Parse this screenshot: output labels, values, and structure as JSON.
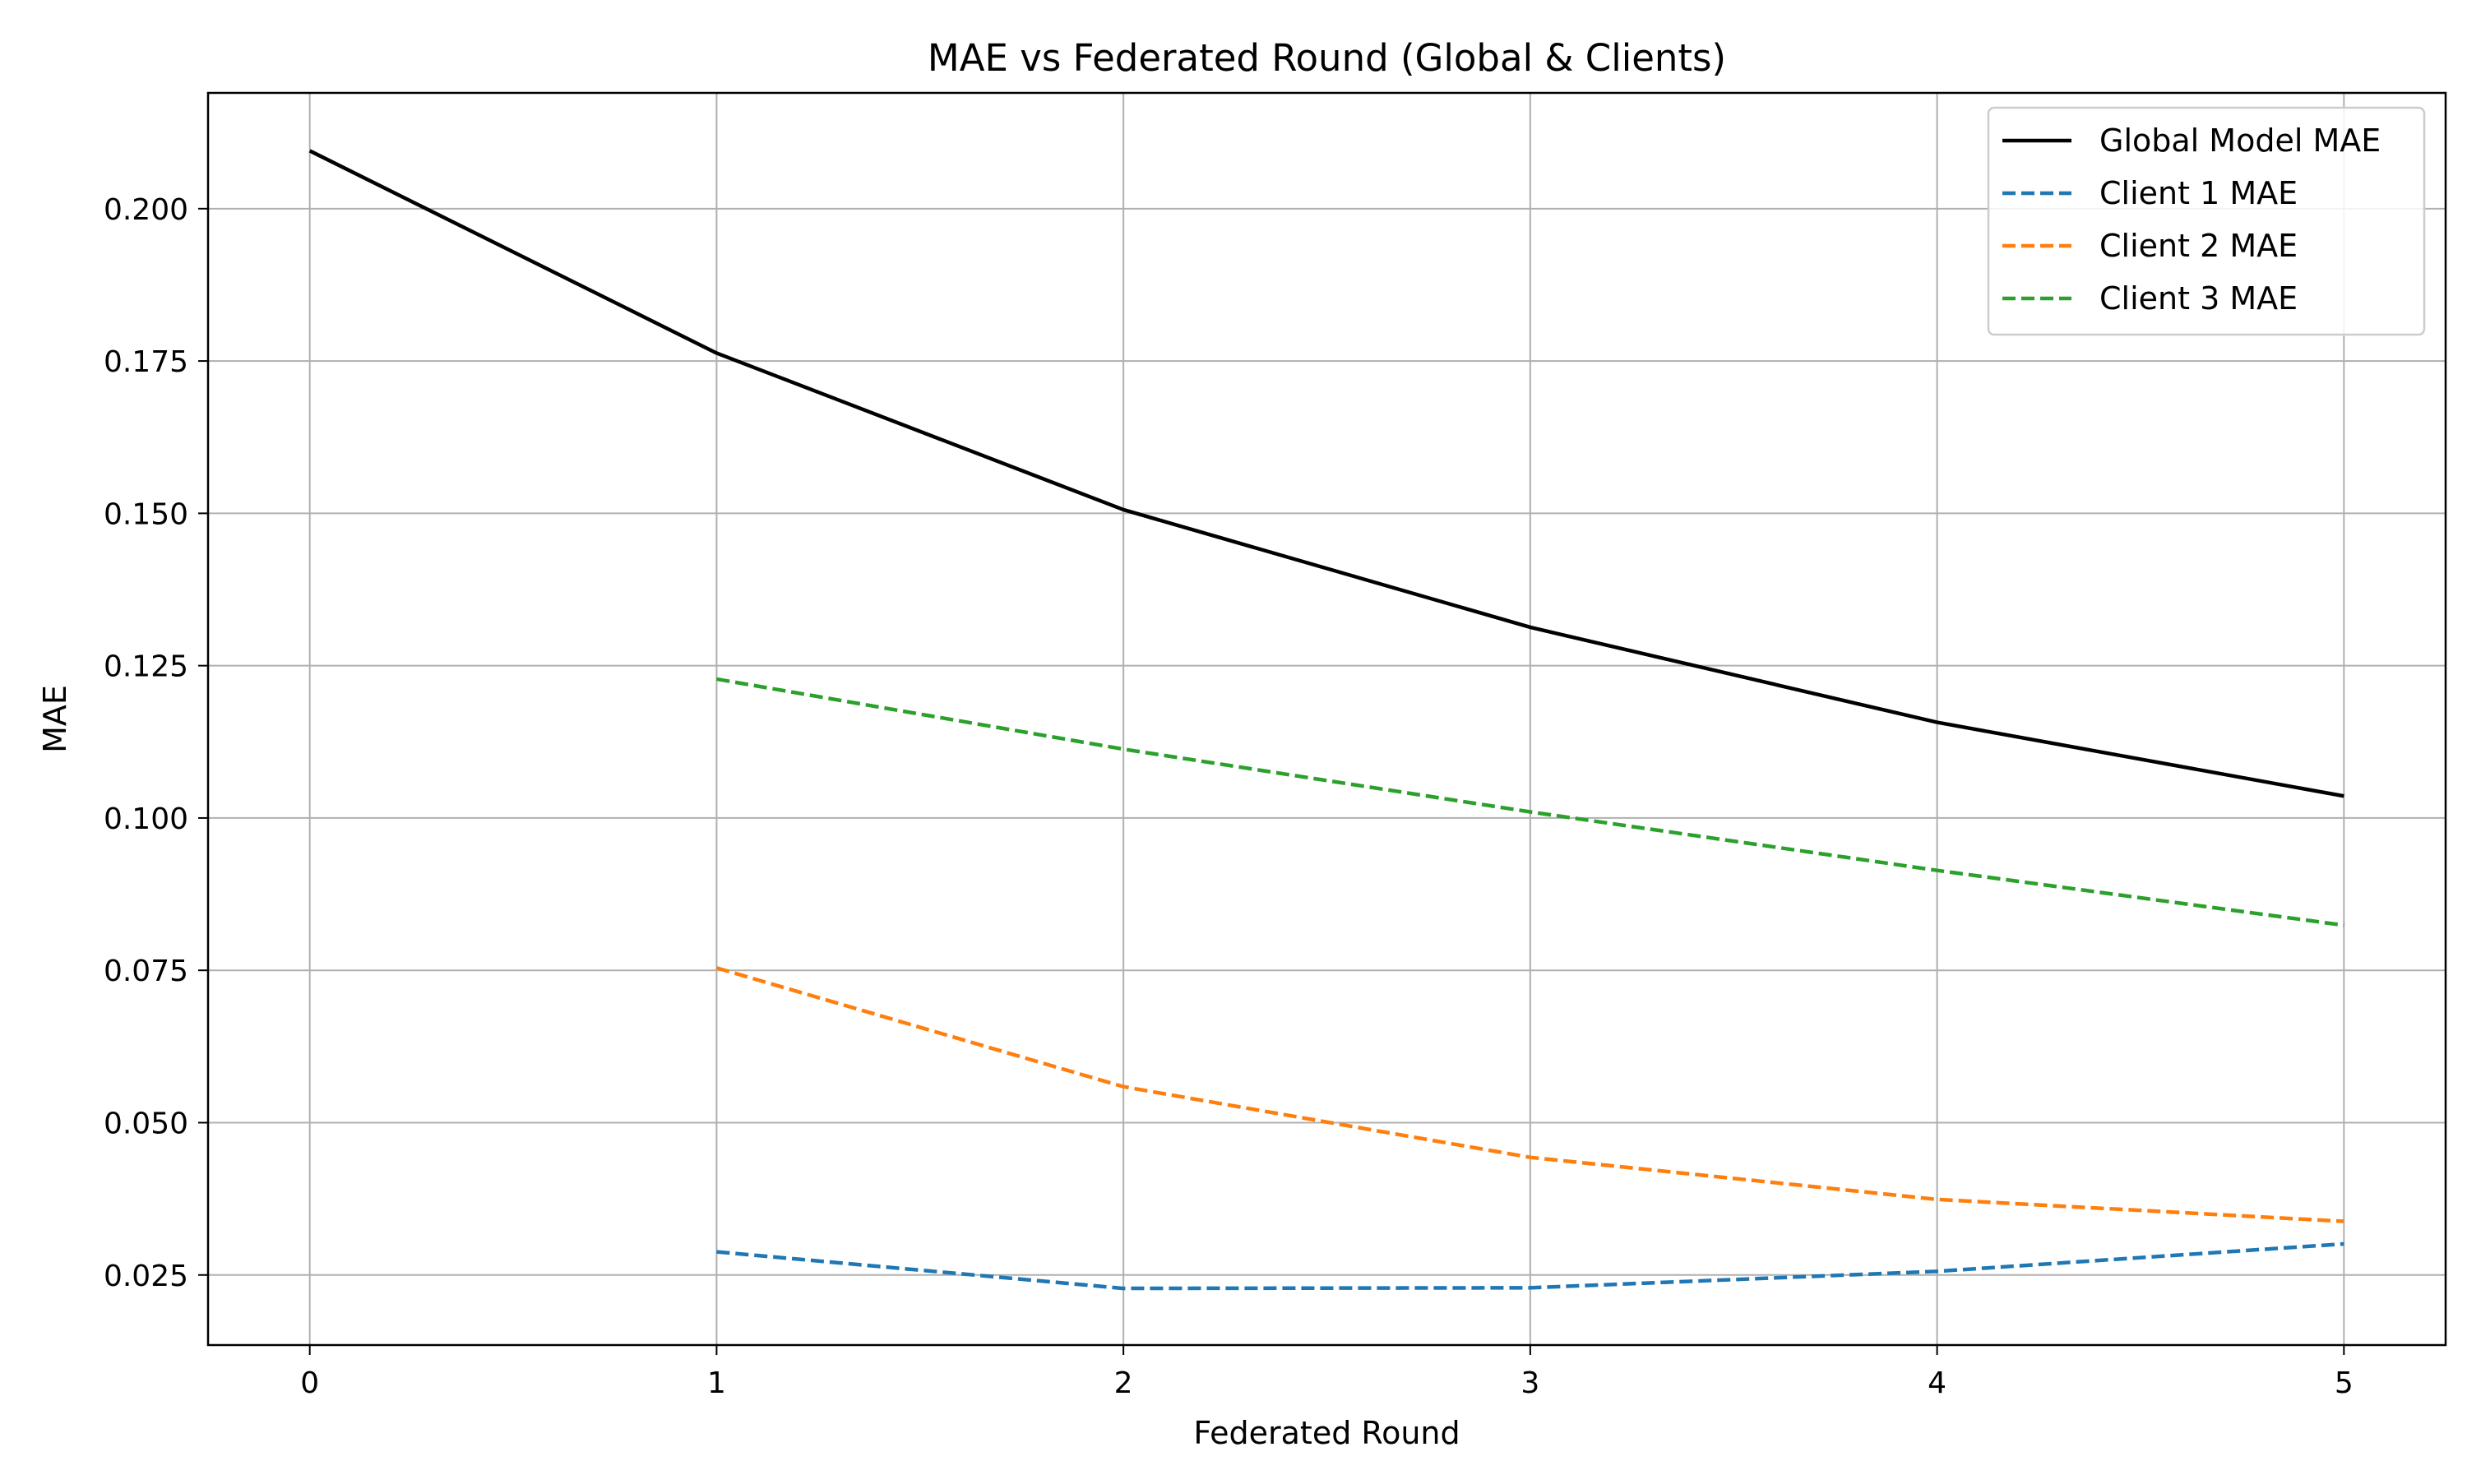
{
  "chart_data": {
    "type": "line",
    "title": "MAE vs Federated Round (Global & Clients)",
    "xlabel": "Federated Round",
    "ylabel": "MAE",
    "xlim": [
      -0.25,
      5.25
    ],
    "ylim": [
      0.0135,
      0.219
    ],
    "x_ticks": [
      "0",
      "1",
      "2",
      "3",
      "4",
      "5"
    ],
    "x_tick_values": [
      0,
      1,
      2,
      3,
      4,
      5
    ],
    "y_ticks": [
      "0.025",
      "0.050",
      "0.075",
      "0.100",
      "0.125",
      "0.150",
      "0.175",
      "0.200"
    ],
    "y_tick_values": [
      0.025,
      0.05,
      0.075,
      0.1,
      0.125,
      0.15,
      0.175,
      0.2
    ],
    "grid": true,
    "legend_position": "top-right",
    "series": [
      {
        "name": "Global Model MAE",
        "color": "#000000",
        "style": "solid",
        "x": [
          0,
          1,
          2,
          3,
          4,
          5
        ],
        "values": [
          0.2095,
          0.1763,
          0.1506,
          0.1313,
          0.1157,
          0.1036
        ]
      },
      {
        "name": "Client 1 MAE",
        "color": "#1f77b4",
        "style": "dashed",
        "x": [
          1,
          2,
          3,
          4,
          5
        ],
        "values": [
          0.0288,
          0.0228,
          0.0229,
          0.0256,
          0.0301
        ]
      },
      {
        "name": "Client 2 MAE",
        "color": "#ff7f0e",
        "style": "dashed",
        "x": [
          1,
          2,
          3,
          4,
          5
        ],
        "values": [
          0.0754,
          0.0559,
          0.0443,
          0.0374,
          0.0338
        ]
      },
      {
        "name": "Client 3 MAE",
        "color": "#2ca02c",
        "style": "dashed",
        "x": [
          1,
          2,
          3,
          4,
          5
        ],
        "values": [
          0.1228,
          0.1113,
          0.101,
          0.0914,
          0.0824
        ]
      }
    ]
  }
}
